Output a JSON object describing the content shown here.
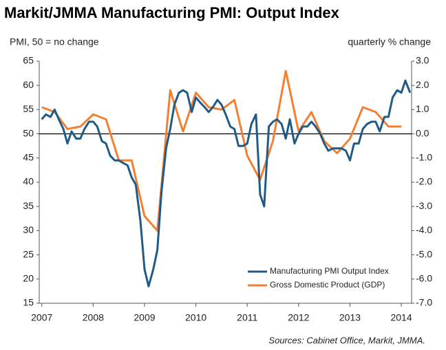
{
  "chart_data": {
    "type": "line",
    "title": "Markit/JMMA Manufacturing PMI: Output Index",
    "ylabel": "PMI, 50 = no change",
    "y2label": "quarterly % change",
    "source": "Sources: Cabinet Office, Markit, JMMA.",
    "xlim": [
      2006.95,
      2014.2
    ],
    "xticks": [
      2007,
      2008,
      2009,
      2010,
      2011,
      2012,
      2013,
      2014
    ],
    "ylim": [
      15,
      65
    ],
    "yticks": [
      15,
      20,
      25,
      30,
      35,
      40,
      45,
      50,
      55,
      60,
      65
    ],
    "y2lim": [
      -7,
      3
    ],
    "y2ticks": [
      {
        "value": -7,
        "label": "-7.0"
      },
      {
        "value": -6,
        "label": "-6.0"
      },
      {
        "value": -5,
        "label": "-5.0"
      },
      {
        "value": -4,
        "label": "-4.0"
      },
      {
        "value": -3,
        "label": "-3.0"
      },
      {
        "value": -2,
        "label": "-2.0"
      },
      {
        "value": -1,
        "label": "-1.0"
      },
      {
        "value": 0,
        "label": "0.0"
      },
      {
        "value": 1,
        "label": "1.0"
      },
      {
        "value": 2,
        "label": "2.0"
      },
      {
        "value": 3,
        "label": "3.0"
      }
    ],
    "hline": 50,
    "legend": "lower right",
    "series": [
      {
        "name": "Manufacturing PMI Output Index",
        "color": "#1f5b86",
        "x": [
          2007.0,
          2007.08,
          2007.17,
          2007.25,
          2007.33,
          2007.42,
          2007.5,
          2007.58,
          2007.67,
          2007.75,
          2007.83,
          2007.92,
          2008.0,
          2008.08,
          2008.17,
          2008.25,
          2008.33,
          2008.42,
          2008.5,
          2008.58,
          2008.67,
          2008.75,
          2008.83,
          2008.92,
          2009.0,
          2009.08,
          2009.17,
          2009.25,
          2009.33,
          2009.42,
          2009.5,
          2009.58,
          2009.67,
          2009.75,
          2009.83,
          2009.92,
          2010.0,
          2010.08,
          2010.17,
          2010.25,
          2010.33,
          2010.42,
          2010.5,
          2010.58,
          2010.67,
          2010.75,
          2010.83,
          2010.92,
          2011.0,
          2011.08,
          2011.17,
          2011.25,
          2011.33,
          2011.42,
          2011.5,
          2011.58,
          2011.67,
          2011.75,
          2011.83,
          2011.92,
          2012.0,
          2012.08,
          2012.17,
          2012.25,
          2012.33,
          2012.42,
          2012.5,
          2012.58,
          2012.67,
          2012.75,
          2012.83,
          2012.92,
          2013.0,
          2013.08,
          2013.17,
          2013.25,
          2013.33,
          2013.42,
          2013.5,
          2013.58,
          2013.67,
          2013.75,
          2013.83,
          2013.92,
          2014.0,
          2014.08,
          2014.17
        ],
        "values": [
          53,
          54,
          53.5,
          55,
          53,
          51,
          48,
          50.5,
          49,
          49,
          51,
          52.5,
          52.5,
          51.5,
          48.5,
          48,
          45.5,
          44.5,
          44.5,
          44,
          43.5,
          41,
          39.5,
          32,
          22,
          18.5,
          22,
          26,
          38,
          47,
          51,
          56,
          58.5,
          59,
          58.5,
          54.5,
          57.5,
          56.5,
          55.5,
          54.5,
          55.5,
          57,
          56,
          54,
          51.5,
          51,
          47.5,
          47.5,
          48,
          52,
          54,
          37.5,
          35,
          51.5,
          52.5,
          53,
          52,
          49,
          53,
          48,
          50,
          51.5,
          51.5,
          52.5,
          51.5,
          50,
          48,
          46.5,
          47,
          47,
          47,
          46.5,
          44.5,
          48,
          48,
          51,
          52,
          52.5,
          52.5,
          50.5,
          53.5,
          53.5,
          57.5,
          59,
          58.5,
          61,
          58.5
        ]
      },
      {
        "name": "Gross Domestic Product (GDP)",
        "color": "#f47f30",
        "axis": "y2",
        "x": [
          2007.0,
          2007.25,
          2007.5,
          2007.75,
          2008.0,
          2008.25,
          2008.5,
          2008.75,
          2009.0,
          2009.25,
          2009.5,
          2009.75,
          2010.0,
          2010.25,
          2010.5,
          2010.75,
          2011.0,
          2011.25,
          2011.5,
          2011.75,
          2012.0,
          2012.25,
          2012.5,
          2012.75,
          2013.0,
          2013.25,
          2013.5,
          2013.75,
          2014.0
        ],
        "values": [
          1.1,
          0.9,
          0.2,
          0.3,
          0.8,
          0.6,
          -1.1,
          -1.1,
          -3.4,
          -4.0,
          1.8,
          0.1,
          1.7,
          1.1,
          1.0,
          1.4,
          -0.9,
          -1.9,
          -0.3,
          2.6,
          0.1,
          0.9,
          -0.3,
          -0.8,
          -0.2,
          1.1,
          0.9,
          0.3,
          0.3
        ]
      }
    ]
  }
}
